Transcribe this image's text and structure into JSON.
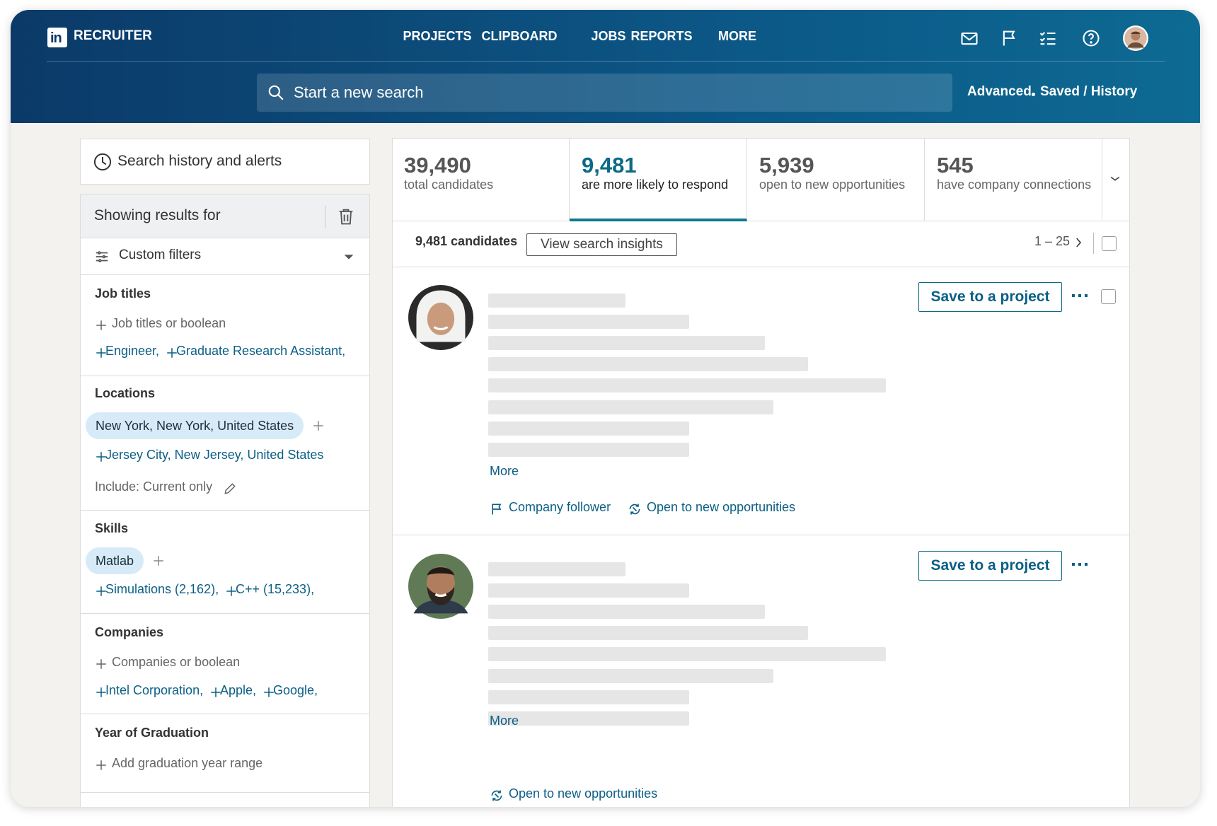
{
  "header": {
    "brand": "RECRUITER",
    "nav": [
      "PROJECTS",
      "CLIPBOARD",
      "JOBS",
      "REPORTS",
      "MORE"
    ],
    "search_placeholder": "Start a new search",
    "advanced": "Advanced",
    "saved_history": "Saved / History"
  },
  "sidebar": {
    "history": "Search history and alerts",
    "showing": "Showing results for",
    "custom_filters": "Custom filters",
    "job_titles": {
      "title": "Job titles",
      "placeholder": "Job titles or boolean",
      "suggestions": [
        "Engineer,",
        "Graduate Research Assistant,"
      ]
    },
    "locations": {
      "title": "Locations",
      "selected": "New York, New York, United States",
      "suggestions": [
        "Jersey City, New Jersey, United States"
      ],
      "include": "Include: Current only"
    },
    "skills": {
      "title": "Skills",
      "selected": "Matlab",
      "suggestions": [
        "Simulations (2,162),",
        "C++ (15,233),"
      ]
    },
    "companies": {
      "title": "Companies",
      "placeholder": "Companies or boolean",
      "suggestions": [
        "Intel Corporation,",
        "Apple,",
        "Google,"
      ]
    },
    "graduation": {
      "title": "Year of Graduation",
      "placeholder": "Add graduation year range"
    }
  },
  "stats": [
    {
      "value": "39,490",
      "label": "total candidates"
    },
    {
      "value": "9,481",
      "label": "are more likely to respond"
    },
    {
      "value": "5,939",
      "label": "open to new opportunities"
    },
    {
      "value": "545",
      "label": "have company connections"
    }
  ],
  "toolbar": {
    "count": "9,481 candidates",
    "insights": "View search insights",
    "range": "1 – 25"
  },
  "results": [
    {
      "save": "Save to a project",
      "more": "More",
      "badges": [
        "Company follower",
        "Open to new opportunities"
      ]
    },
    {
      "save": "Save to a project",
      "more": "More",
      "badges": [
        "Open to new opportunities"
      ]
    }
  ]
}
